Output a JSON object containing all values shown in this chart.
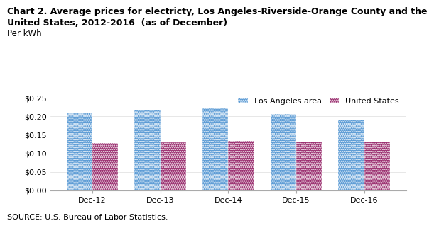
{
  "title_line1": "Chart 2. Average prices for electricty, Los Angeles-Riverside-Orange County and the",
  "title_line2": "United States, 2012-2016  (as of December)",
  "ylabel": "Per kWh",
  "source": "SOURCE: U.S. Bureau of Labor Statistics.",
  "categories": [
    "Dec-12",
    "Dec-13",
    "Dec-14",
    "Dec-15",
    "Dec-16"
  ],
  "la_values": [
    0.211,
    0.219,
    0.222,
    0.207,
    0.191
  ],
  "us_values": [
    0.127,
    0.13,
    0.134,
    0.132,
    0.132
  ],
  "la_color": "#5B9BD5",
  "us_color": "#9B3070",
  "la_label": "Los Angeles area",
  "us_label": "United States",
  "ylim": [
    0,
    0.25
  ],
  "yticks": [
    0.0,
    0.05,
    0.1,
    0.15,
    0.2,
    0.25
  ],
  "bar_width": 0.38,
  "title_fontsize": 9,
  "perkwh_fontsize": 8.5,
  "tick_fontsize": 8,
  "legend_fontsize": 8,
  "source_fontsize": 8,
  "background_color": "#ffffff"
}
